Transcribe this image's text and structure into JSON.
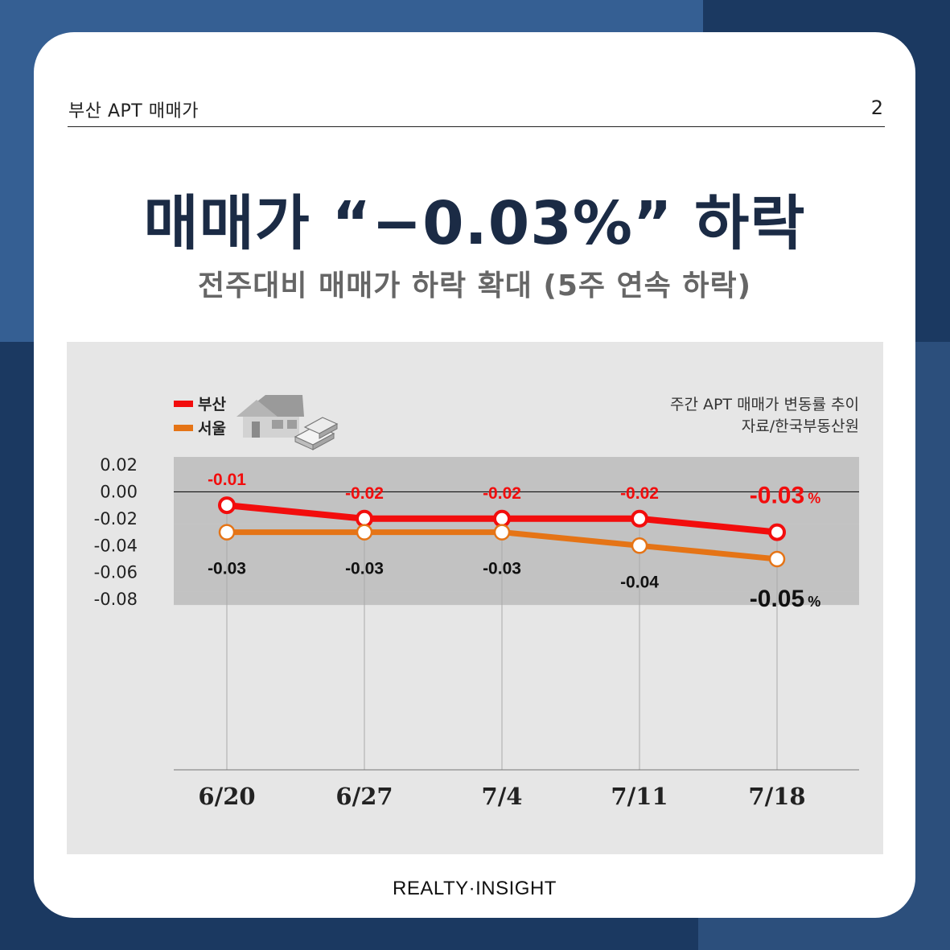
{
  "header": {
    "title": "부산 APT 매매가",
    "page_number": "2"
  },
  "headline": {
    "title": "매매가 “−0.03%” 하락",
    "subtitle": "전주대비 매매가 하락 확대 (5주 연속 하락)"
  },
  "chart_data": {
    "type": "line",
    "caption": "주간 APT 매매가 변동률 추이",
    "source": "자료/한국부동산원",
    "x": [
      "6/20",
      "6/27",
      "7/4",
      "7/11",
      "7/18"
    ],
    "y_ticks": [
      "0.02",
      "0.00",
      "-0.02",
      "-0.04",
      "-0.06",
      "-0.08"
    ],
    "ylim": [
      -0.09,
      0.02
    ],
    "grid": true,
    "legend_position": "top-left",
    "last_label_suffix": "%",
    "series": [
      {
        "name": "부산",
        "values": [
          -0.01,
          -0.02,
          -0.02,
          -0.02,
          -0.03
        ],
        "labels": [
          "-0.01",
          "-0.02",
          "-0.02",
          "-0.02",
          "-0.03"
        ]
      },
      {
        "name": "서울",
        "values": [
          -0.03,
          -0.03,
          -0.03,
          -0.04,
          -0.05
        ],
        "labels": [
          "-0.03",
          "-0.03",
          "-0.03",
          "-0.04",
          "-0.05"
        ]
      }
    ]
  },
  "colors": {
    "busan": "#f20d0d",
    "seoul": "#e57416",
    "title": "#1b2b45",
    "subtitle": "#666666",
    "chart_bg": "#e6e6e6",
    "grid_band": "#c2c2c2"
  },
  "icons": [
    "house-icon",
    "money-stack-icon"
  ],
  "footer": {
    "brand": "REALTY·INSIGHT"
  }
}
